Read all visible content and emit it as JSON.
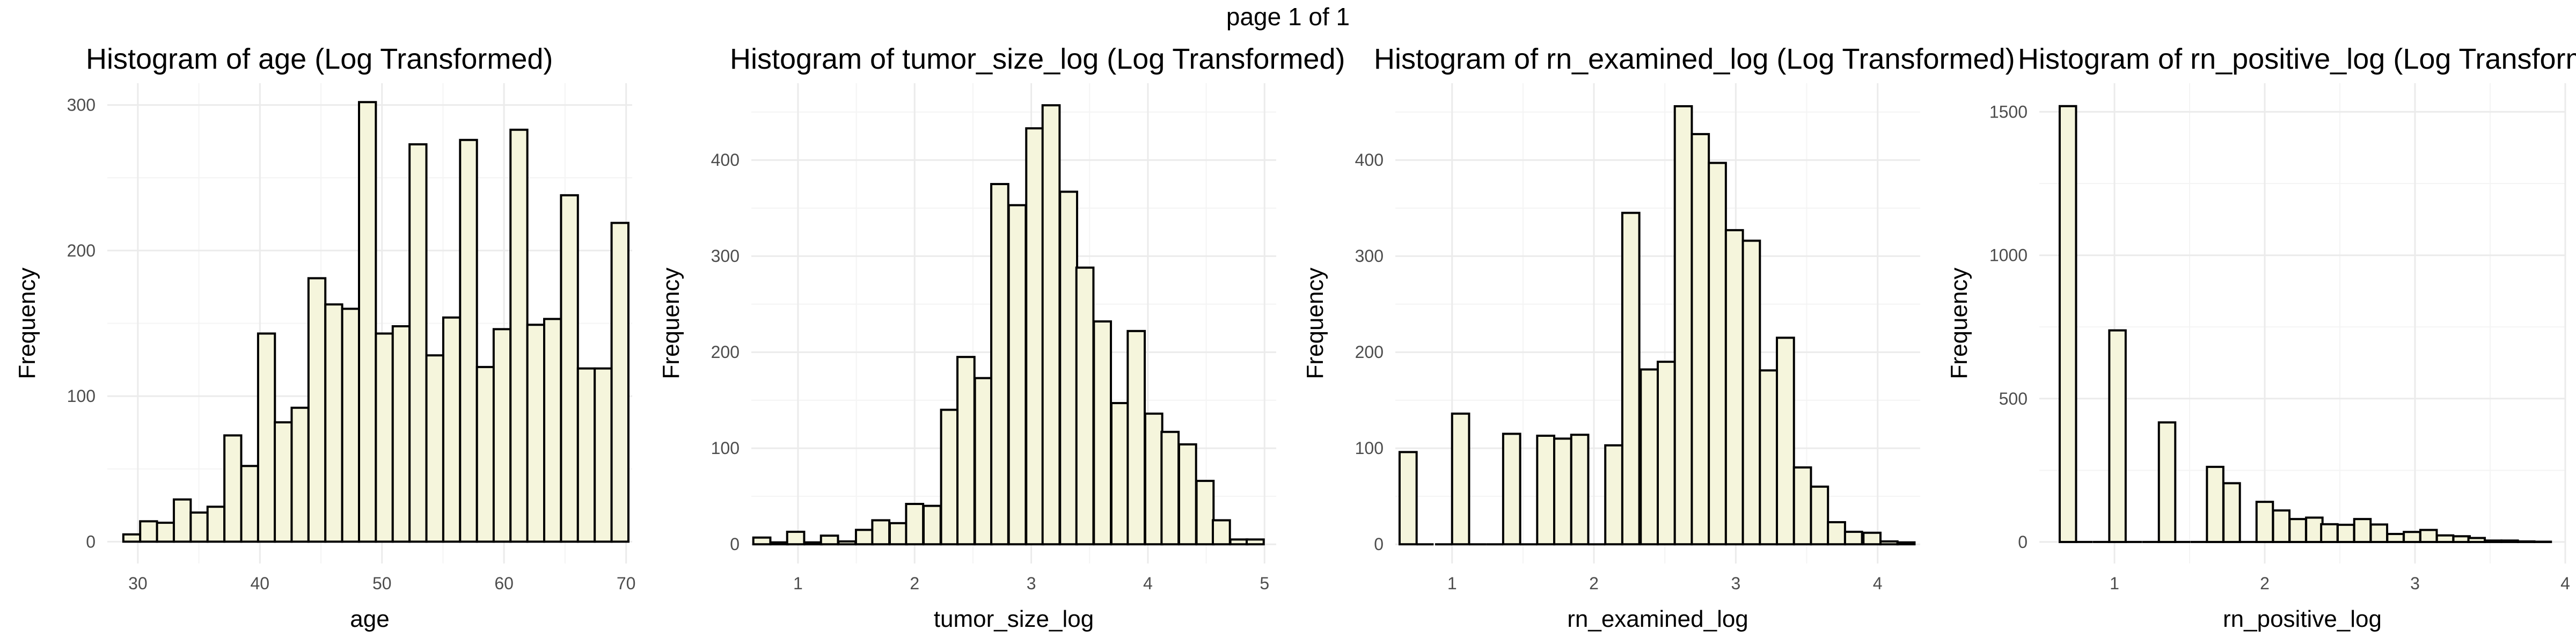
{
  "page_title": "page 1 of 1",
  "style": {
    "bar_fill": "#f5f5dc",
    "bar_stroke": "#000000",
    "grid_major": "#ebebeb",
    "grid_minor": "#f4f4f4"
  },
  "chart_data": [
    {
      "type": "bar",
      "title": "Histogram of age (Log Transformed)",
      "xlabel": "age",
      "ylabel": "Frequency",
      "xlim": [
        27.5,
        70.5
      ],
      "ylim": [
        -15,
        315
      ],
      "xticks": [
        30,
        40,
        50,
        60,
        70
      ],
      "yticks": [
        0,
        100,
        200,
        300
      ],
      "binwidth": 1.379,
      "bin_centers": [
        29.5,
        30.88,
        32.26,
        33.64,
        35.02,
        36.4,
        37.78,
        39.16,
        40.54,
        41.91,
        43.29,
        44.67,
        46.05,
        47.43,
        48.81,
        50.19,
        51.57,
        52.95,
        54.33,
        55.71,
        57.09,
        58.47,
        59.84,
        61.22,
        62.6,
        63.98,
        65.36,
        66.74,
        68.12,
        69.5
      ],
      "values": [
        5,
        14,
        13,
        29,
        20,
        24,
        73,
        52,
        143,
        82,
        92,
        181,
        163,
        160,
        302,
        143,
        148,
        273,
        128,
        154,
        276,
        120,
        146,
        283,
        149,
        153,
        238,
        119,
        119,
        219
      ]
    },
    {
      "type": "bar",
      "title": "Histogram of tumor_size_log (Log Transformed)",
      "xlabel": "tumor_size_log",
      "ylabel": "Frequency",
      "xlim": [
        0.6,
        5.1
      ],
      "ylim": [
        -20,
        480
      ],
      "xticks": [
        1,
        2,
        3,
        4,
        5
      ],
      "yticks": [
        0,
        100,
        200,
        300,
        400
      ],
      "binwidth": 0.146,
      "bin_centers": [
        0.69,
        0.84,
        0.98,
        1.13,
        1.27,
        1.42,
        1.57,
        1.71,
        1.86,
        2.0,
        2.15,
        2.3,
        2.44,
        2.59,
        2.73,
        2.88,
        3.03,
        3.17,
        3.32,
        3.46,
        3.61,
        3.76,
        3.9,
        4.05,
        4.19,
        4.34,
        4.49,
        4.63,
        4.78,
        4.92
      ],
      "values": [
        7,
        2,
        13,
        2,
        9,
        3,
        15,
        25,
        22,
        42,
        40,
        140,
        195,
        173,
        375,
        353,
        433,
        457,
        367,
        288,
        232,
        147,
        222,
        136,
        117,
        104,
        66,
        25,
        5,
        5
      ]
    },
    {
      "type": "bar",
      "title": "Histogram of rn_examined_log (Log Transformed)",
      "xlabel": "rn_examined_log",
      "ylabel": "Frequency",
      "xlim": [
        0.6,
        4.3
      ],
      "ylim": [
        -20,
        480
      ],
      "xticks": [
        1,
        2,
        3,
        4
      ],
      "yticks": [
        0,
        100,
        200,
        300,
        400
      ],
      "binwidth": 0.12,
      "bin_centers": [
        0.69,
        0.81,
        0.94,
        1.06,
        1.18,
        1.3,
        1.42,
        1.54,
        1.66,
        1.78,
        1.9,
        2.02,
        2.14,
        2.26,
        2.39,
        2.51,
        2.63,
        2.75,
        2.87,
        2.99,
        3.11,
        3.23,
        3.35,
        3.47,
        3.59,
        3.71,
        3.83,
        3.96,
        4.08,
        4.2
      ],
      "values": [
        96,
        0,
        0,
        136,
        0,
        0,
        115,
        0,
        113,
        110,
        114,
        0,
        103,
        345,
        182,
        190,
        456,
        427,
        397,
        327,
        316,
        181,
        215,
        80,
        60,
        23,
        13,
        12,
        3,
        2
      ]
    },
    {
      "type": "bar",
      "title": "Histogram of rn_positive_log (Log Transformed)",
      "xlabel": "rn_positive_log",
      "ylabel": "Frequency",
      "xlim": [
        0.5,
        4.0
      ],
      "ylim": [
        -75,
        1600
      ],
      "xticks": [
        1,
        2,
        3,
        4
      ],
      "yticks": [
        0,
        500,
        1000,
        1500
      ],
      "binwidth": 0.109,
      "bin_centers": [
        0.69,
        0.8,
        0.91,
        1.02,
        1.13,
        1.24,
        1.35,
        1.45,
        1.56,
        1.67,
        1.78,
        1.89,
        2.0,
        2.11,
        2.22,
        2.33,
        2.43,
        2.54,
        2.65,
        2.76,
        2.87,
        2.98,
        3.09,
        3.2,
        3.31,
        3.41,
        3.52,
        3.63,
        3.74,
        3.85
      ],
      "values": [
        1520,
        0,
        0,
        738,
        0,
        0,
        417,
        0,
        0,
        262,
        205,
        0,
        140,
        110,
        80,
        85,
        62,
        60,
        80,
        61,
        28,
        35,
        42,
        23,
        20,
        14,
        5,
        5,
        2,
        1
      ]
    }
  ]
}
